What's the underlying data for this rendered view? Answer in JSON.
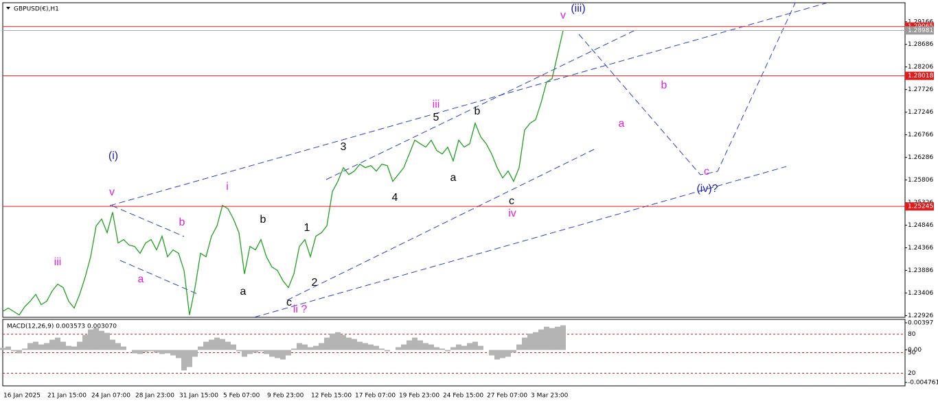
{
  "chart_data": [
    {
      "type": "line",
      "title": "GBPUSD(€),H1",
      "categories": [
        "16 Jan 2025",
        null,
        null,
        null,
        null,
        null,
        null,
        null,
        "21 Jan 15:00",
        null,
        null,
        null,
        null,
        null,
        null,
        null,
        "24 Jan 07:00",
        null,
        null,
        null,
        null,
        null,
        null,
        null,
        "28 Jan 23:00",
        null,
        null,
        null,
        null,
        null,
        null,
        null,
        "31 Jan 15:00",
        null,
        null,
        null,
        null,
        null,
        null,
        null,
        "5 Feb 07:00",
        null,
        null,
        null,
        null,
        null,
        null,
        null,
        "9 Feb 23:00",
        null,
        null,
        null,
        null,
        null,
        null,
        null,
        "12 Feb 15:00",
        null,
        null,
        null,
        null,
        null,
        null,
        null,
        "17 Feb 07:00",
        null,
        null,
        null,
        null,
        null,
        null,
        null,
        "19 Feb 23:00",
        null,
        null,
        null,
        null,
        null,
        null,
        null,
        "24 Feb 15:00",
        null,
        null,
        null,
        null,
        null,
        null,
        null,
        "27 Feb 07:00",
        null,
        null,
        null,
        null,
        null,
        null,
        null,
        "3 Mar 23:00",
        null,
        null,
        null,
        null,
        null,
        null
      ],
      "values": [
        1.23013,
        1.23086,
        1.23013,
        1.22941,
        1.23115,
        1.23232,
        1.23377,
        1.23159,
        1.23232,
        1.2345,
        1.23595,
        1.23522,
        1.23232,
        1.23086,
        1.23377,
        1.23741,
        1.24177,
        1.24832,
        1.24977,
        1.24686,
        1.25122,
        1.24468,
        1.24541,
        1.24424,
        1.24395,
        1.2425,
        1.24468,
        1.24541,
        1.24322,
        1.24613,
        1.24177,
        1.24322,
        1.2425,
        1.23886,
        1.22941,
        1.23522,
        1.2425,
        1.24177,
        1.24613,
        1.24832,
        1.25268,
        1.25195,
        1.24977,
        1.24686,
        1.23813,
        1.24395,
        1.24322,
        1.24541,
        1.24177,
        1.23959,
        1.23886,
        1.23668,
        1.23522,
        1.23813,
        1.24395,
        1.24541,
        1.24177,
        1.24613,
        1.24686,
        1.24832,
        1.25559,
        1.25777,
        1.26068,
        1.25922,
        1.25995,
        1.26141,
        1.26068,
        1.26112,
        1.25995,
        1.26141,
        1.26112,
        1.25777,
        1.25922,
        1.26068,
        1.26359,
        1.2665,
        1.26577,
        1.26504,
        1.2665,
        1.26431,
        1.26359,
        1.26504,
        1.26213,
        1.2665,
        1.26504,
        1.26577,
        1.27013,
        1.26722,
        1.26577,
        1.26359,
        1.26068,
        1.2585,
        1.25995,
        1.25777,
        1.26068,
        1.26868,
        1.27013,
        1.27086,
        1.2745,
        1.27886,
        1.27959,
        1.28468,
        1.28977
      ],
      "color": "#1fa01f",
      "ylim": [
        1.2289,
        1.2957
      ],
      "yticks": [
        1.29166,
        1.28686,
        1.28206,
        1.27726,
        1.27246,
        1.26766,
        1.26286,
        1.25806,
        1.25326,
        1.24846,
        1.24366,
        1.23886,
        1.23406,
        1.22926
      ],
      "horizontal_lines": [
        1.29065,
        1.28018,
        1.25245
      ],
      "horizontal_line_color": "#e01b1b",
      "current_price": 1.28981,
      "annotations": [
        {
          "text": "(iii)",
          "color": "#1a1aa6"
        },
        {
          "text": "v",
          "color": "#e020e0"
        },
        {
          "text": "(i)",
          "color": "#1a1aa6"
        },
        {
          "text": "v",
          "color": "#e020e0"
        },
        {
          "text": "i",
          "color": "#e020e0"
        },
        {
          "text": "iii",
          "color": "#e020e0"
        },
        {
          "text": "a",
          "color": "#e020e0"
        },
        {
          "text": "b",
          "color": "#e020e0"
        },
        {
          "text": "b",
          "color": "#000000"
        },
        {
          "text": "a",
          "color": "#000000"
        },
        {
          "text": "c",
          "color": "#000000"
        },
        {
          "text": "ii ?",
          "color": "#e020e0"
        },
        {
          "text": "1",
          "color": "#000000"
        },
        {
          "text": "2",
          "color": "#000000"
        },
        {
          "text": "3",
          "color": "#000000"
        },
        {
          "text": "5",
          "color": "#000000"
        },
        {
          "text": "4",
          "color": "#000000"
        },
        {
          "text": "iii",
          "color": "#e020e0"
        },
        {
          "text": "b",
          "color": "#000000"
        },
        {
          "text": "a",
          "color": "#000000"
        },
        {
          "text": "c",
          "color": "#000000"
        },
        {
          "text": "iv",
          "color": "#e020e0"
        },
        {
          "text": "b",
          "color": "#e020e0"
        },
        {
          "text": "a",
          "color": "#e020e0"
        },
        {
          "text": "c",
          "color": "#e020e0"
        },
        {
          "text": "(iv)?",
          "color": "#1a1aa6"
        }
      ]
    },
    {
      "type": "bar",
      "title": "MACD(12,26,9) 0.003573 0.003070",
      "values": [
        0.0003,
        0.0005,
        -0.0002,
        -0.0005,
        0.0002,
        0.001,
        0.0012,
        0.0008,
        0.001,
        0.0015,
        0.0018,
        0.0012,
        0.0006,
        0.0005,
        0.0012,
        0.0022,
        0.003,
        0.0032,
        0.0028,
        0.0025,
        0.0015,
        0.001,
        0.0005,
        0.0,
        -0.0005,
        -0.0006,
        -0.0003,
        -0.0002,
        -0.0004,
        -0.0006,
        -0.0005,
        -0.0008,
        -0.0012,
        -0.003,
        -0.0025,
        -0.001,
        0.0005,
        0.0012,
        0.0015,
        0.0018,
        0.0016,
        0.0012,
        0.0008,
        -0.0002,
        -0.001,
        -0.0006,
        -0.0004,
        -0.0002,
        -0.0006,
        -0.001,
        -0.0012,
        -0.0014,
        -0.0008,
        0.0002,
        0.001,
        0.0008,
        0.0004,
        0.0006,
        0.001,
        0.0018,
        0.0024,
        0.0026,
        0.0022,
        0.0018,
        0.0016,
        0.0012,
        0.001,
        0.0008,
        0.0006,
        0.0002,
        -0.0002,
        0.0,
        0.0004,
        0.0008,
        0.0014,
        0.0018,
        0.0014,
        0.001,
        0.0008,
        0.0004,
        0.0002,
        -0.0002,
        0.0004,
        0.0008,
        0.0006,
        0.001,
        0.0012,
        0.0006,
        0.0,
        -0.0008,
        -0.0014,
        -0.0012,
        -0.001,
        -0.0004,
        0.0008,
        0.0018,
        0.0024,
        0.0026,
        0.003,
        0.0034,
        0.0032,
        0.0034,
        0.0036
      ],
      "color": "#b4b4b4",
      "ylim": [
        -0.00526,
        0.00447
      ],
      "yticks": [
        0.00397,
        {
          "value": 0,
          "label": "0.00"
        },
        -0.004761
      ],
      "levels": [
        {
          "value": 0.0023,
          "label": "80"
        },
        {
          "value": -0.0004,
          "label": "50"
        },
        {
          "value": -0.0034,
          "label": "20"
        }
      ],
      "level_color": "#e01b1b"
    }
  ]
}
